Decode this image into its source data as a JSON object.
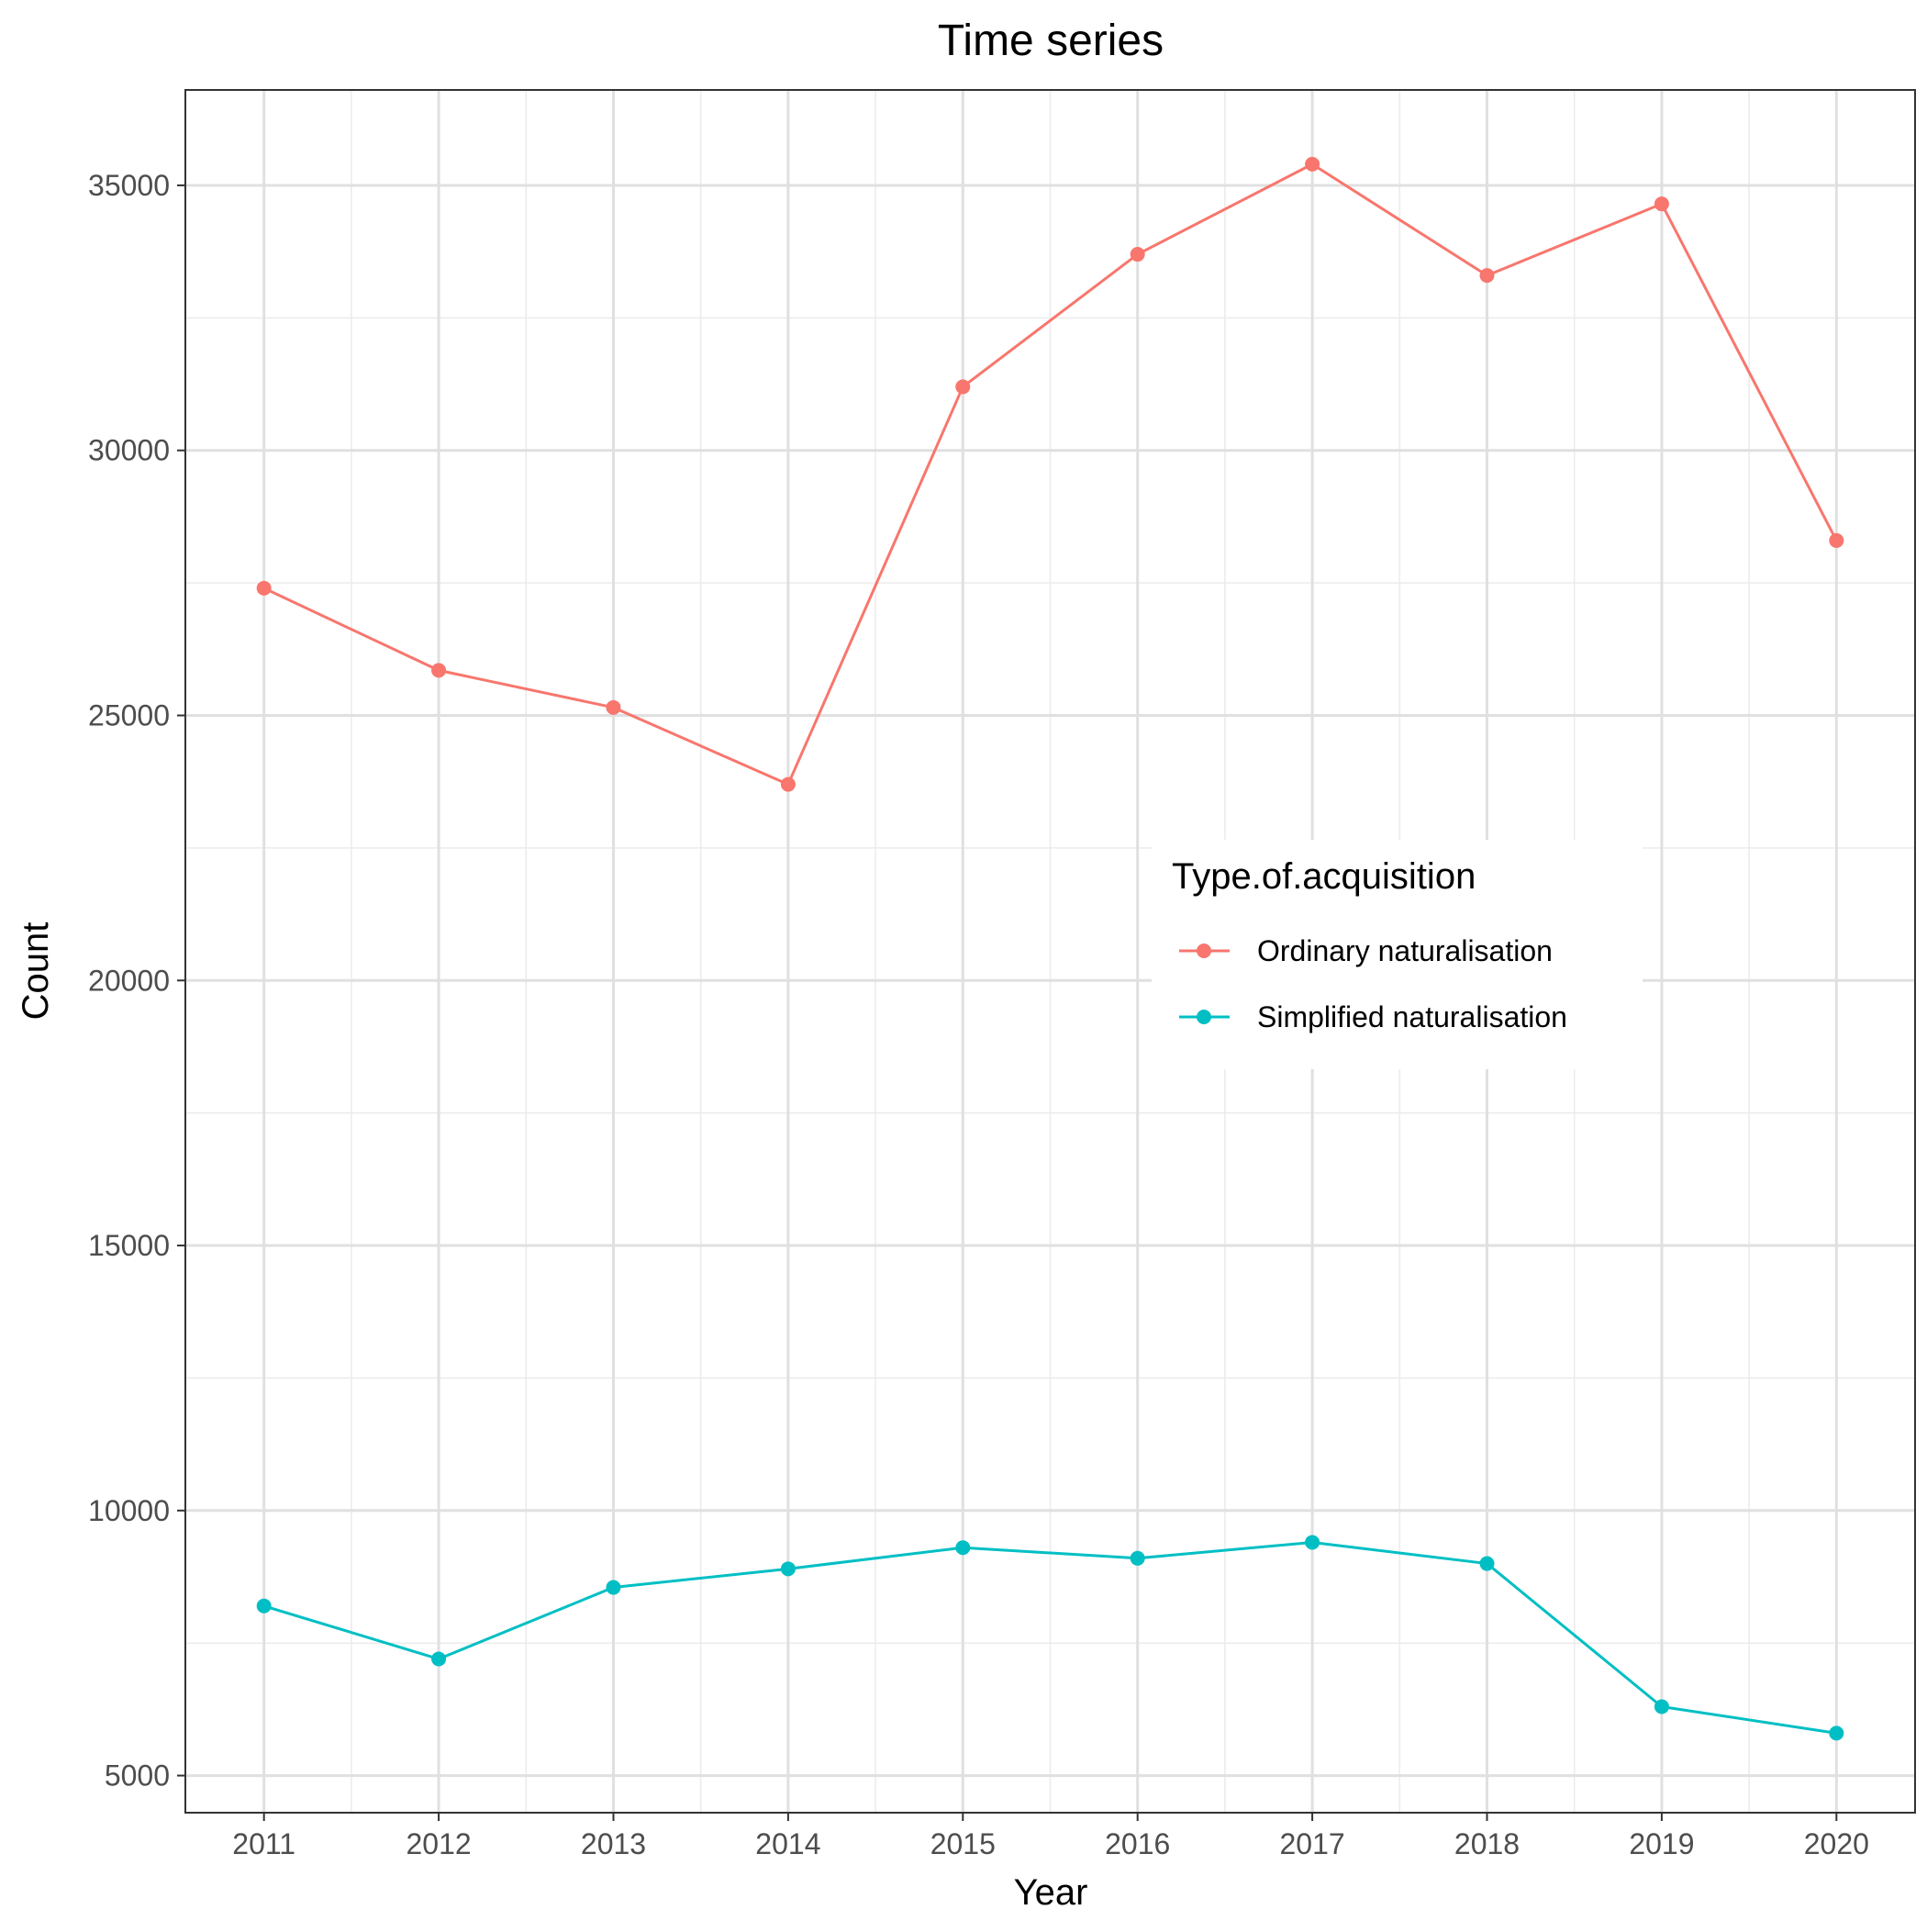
{
  "chart_data": {
    "type": "line",
    "title": "Time series",
    "xlabel": "Year",
    "ylabel": "Count",
    "x": [
      2011,
      2012,
      2013,
      2014,
      2015,
      2016,
      2017,
      2018,
      2019,
      2020
    ],
    "xlim": [
      2010.55,
      2020.45
    ],
    "ylim": [
      4300,
      36800
    ],
    "y_ticks": [
      5000,
      10000,
      15000,
      20000,
      25000,
      30000,
      35000
    ],
    "x_tick_labels": [
      "2011",
      "2012",
      "2013",
      "2014",
      "2015",
      "2016",
      "2017",
      "2018",
      "2019",
      "2020"
    ],
    "y_tick_labels": [
      "5000",
      "10000",
      "15000",
      "20000",
      "25000",
      "30000",
      "35000"
    ],
    "grid": true,
    "legend": {
      "title": "Type.of.acquisition",
      "placement": "center-right"
    },
    "series": [
      {
        "name": "Ordinary naturalisation",
        "color": "#F8766D",
        "values": [
          27400,
          25850,
          25150,
          23700,
          31200,
          33700,
          35400,
          33300,
          34650,
          28300
        ]
      },
      {
        "name": "Simplified naturalisation",
        "color": "#00BFC4",
        "values": [
          8200,
          7200,
          8550,
          8900,
          9300,
          9100,
          9400,
          9000,
          6300,
          5800
        ]
      }
    ]
  }
}
